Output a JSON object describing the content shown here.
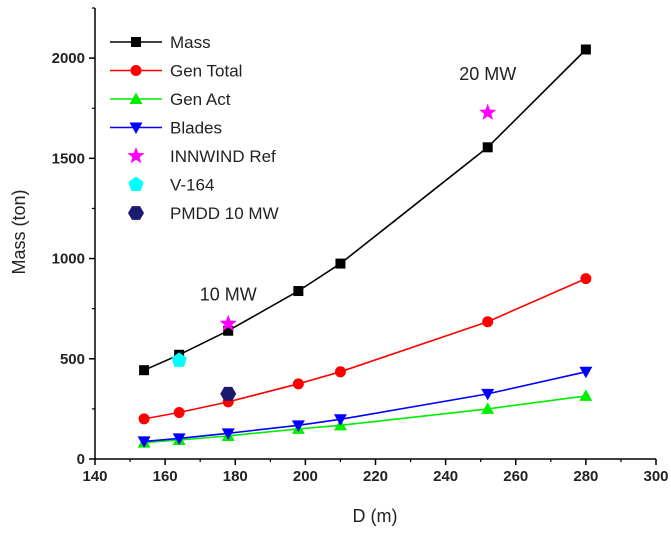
{
  "chart_data": {
    "type": "line",
    "xlabel": "D (m)",
    "ylabel": "Mass (ton)",
    "xlim": [
      140,
      300
    ],
    "ylim": [
      0,
      2250
    ],
    "x_ticks": [
      "140",
      "160",
      "180",
      "200",
      "220",
      "240",
      "260",
      "280",
      "300"
    ],
    "y_ticks": [
      "0",
      "500",
      "1000",
      "1500",
      "2000"
    ],
    "x_tick_values": [
      140,
      160,
      180,
      200,
      220,
      240,
      260,
      280,
      300
    ],
    "y_tick_values": [
      0,
      500,
      1000,
      1500,
      2000
    ],
    "grid": false,
    "legend_position": "top-left",
    "series": [
      {
        "name": "Mass",
        "color": "#000000",
        "marker": "square",
        "line": true,
        "x": [
          154,
          164,
          178,
          198,
          210,
          252,
          280
        ],
        "y": [
          443,
          520,
          640,
          838,
          975,
          1555,
          2043
        ]
      },
      {
        "name": "Gen Total",
        "color": "#ff0000",
        "marker": "circle",
        "line": true,
        "x": [
          154,
          164,
          178,
          198,
          210,
          252,
          280
        ],
        "y": [
          200,
          232,
          285,
          375,
          435,
          685,
          900
        ]
      },
      {
        "name": "Gen Act",
        "color": "#00ee00",
        "marker": "triangle-up",
        "line": true,
        "x": [
          154,
          164,
          178,
          198,
          210,
          252,
          280
        ],
        "y": [
          82,
          95,
          115,
          150,
          168,
          250,
          315
        ]
      },
      {
        "name": "Blades",
        "color": "#0000ff",
        "marker": "triangle-down",
        "line": true,
        "x": [
          154,
          164,
          178,
          198,
          210,
          252,
          280
        ],
        "y": [
          88,
          103,
          128,
          168,
          198,
          325,
          435
        ]
      },
      {
        "name": "INNWIND Ref",
        "color": "#ff00ff",
        "marker": "star",
        "line": false,
        "x": [
          178,
          252
        ],
        "y": [
          675,
          1728
        ]
      },
      {
        "name": "V-164",
        "color": "#00ffff",
        "marker": "pentagon",
        "line": false,
        "x": [
          164
        ],
        "y": [
          492
        ]
      },
      {
        "name": "PMDD 10 MW",
        "color": "#1a1a6e",
        "marker": "hexagon",
        "line": false,
        "x": [
          178
        ],
        "y": [
          325
        ]
      }
    ],
    "annotations": [
      {
        "text": "10 MW",
        "x": 178,
        "y": 790
      },
      {
        "text": "20 MW",
        "x": 252,
        "y": 1890
      }
    ]
  }
}
